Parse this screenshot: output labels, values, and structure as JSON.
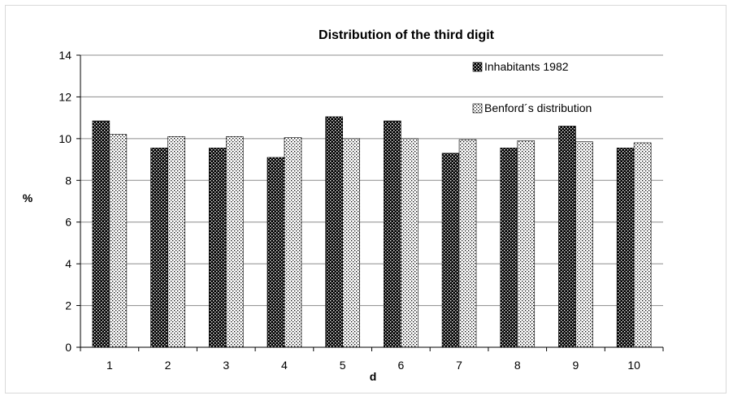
{
  "chart_data": {
    "type": "bar",
    "title": "Distribution of the third digit",
    "xlabel": "d",
    "ylabel": "%",
    "ylim": [
      0,
      14
    ],
    "yticks": [
      0,
      2,
      4,
      6,
      8,
      10,
      12,
      14
    ],
    "grid": "horizontal",
    "legend_position": "top-right",
    "categories": [
      "1",
      "2",
      "3",
      "4",
      "5",
      "6",
      "7",
      "8",
      "9",
      "10"
    ],
    "series": [
      {
        "name": "Inhabitants 1982",
        "pattern": "dark-checker",
        "values": [
          10.85,
          9.55,
          9.55,
          9.1,
          11.05,
          10.85,
          9.3,
          9.55,
          10.6,
          9.55
        ]
      },
      {
        "name": "Benford´s distribution",
        "pattern": "light-dots",
        "values": [
          10.2,
          10.1,
          10.1,
          10.05,
          10.0,
          10.0,
          9.95,
          9.9,
          9.85,
          9.8
        ]
      }
    ]
  }
}
